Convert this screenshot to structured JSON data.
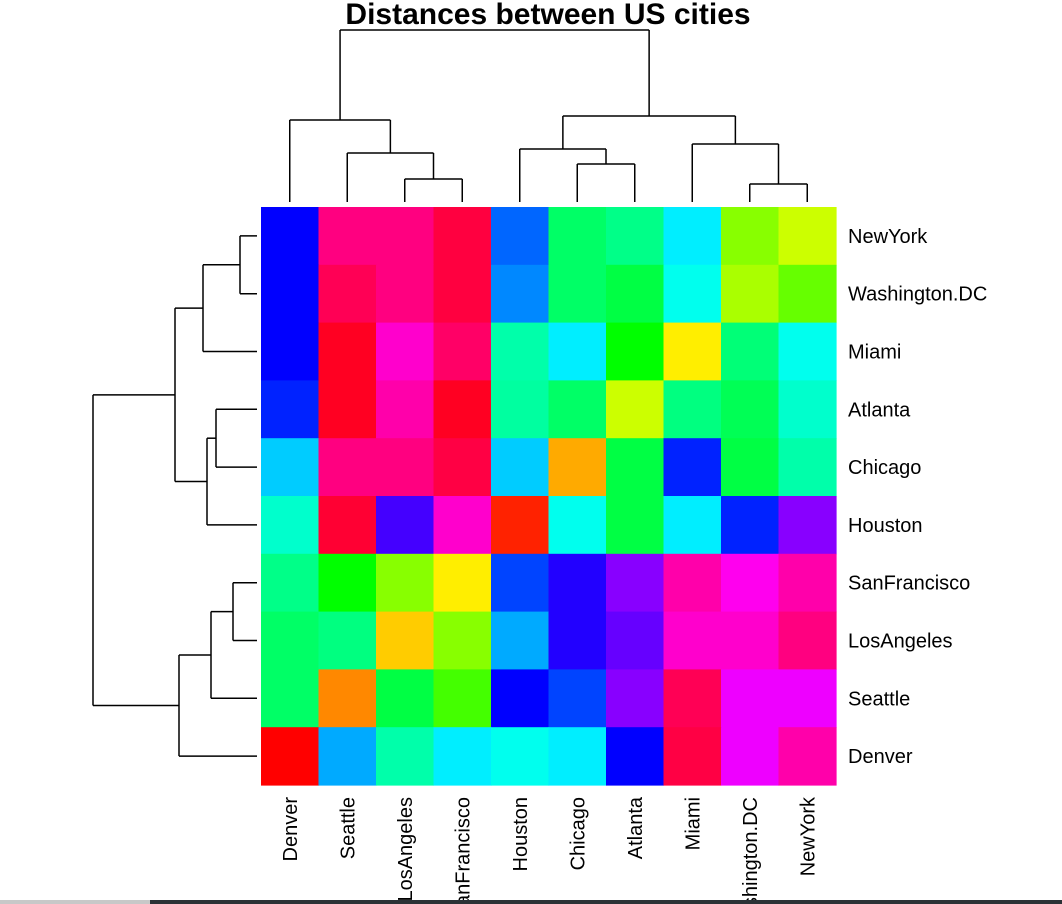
{
  "chart_data": {
    "type": "heatmap",
    "title": "Distances between US cities",
    "row_labels": [
      "NewYork",
      "Washington.DC",
      "Miami",
      "Atlanta",
      "Chicago",
      "Houston",
      "SanFrancisco",
      "LosAngeles",
      "Seattle",
      "Denver"
    ],
    "col_labels": [
      "Denver",
      "Seattle",
      "LosAngeles",
      "SanFrancisco",
      "Houston",
      "Chicago",
      "Atlanta",
      "Miami",
      "Washington.DC",
      "NewYork"
    ],
    "colormap": "rainbow",
    "dendrograms": [
      "top",
      "left"
    ],
    "cell_colors": [
      [
        "#0000ff",
        "#ff0080",
        "#ff0080",
        "#ff0040",
        "#0066ff",
        "#00ff66",
        "#00ff88",
        "#00eeff",
        "#88ff00",
        "#ccff00"
      ],
      [
        "#0000ff",
        "#ff0055",
        "#ff0080",
        "#ff0040",
        "#0088ff",
        "#00ff66",
        "#00ff44",
        "#00ffee",
        "#aaff00",
        "#66ff00"
      ],
      [
        "#0000ff",
        "#ff0022",
        "#ff00cc",
        "#ff0066",
        "#00ffaa",
        "#00eeff",
        "#00ff00",
        "#ffee00",
        "#00ff77",
        "#00ffee"
      ],
      [
        "#0022ff",
        "#ff0022",
        "#ff00aa",
        "#ff0022",
        "#00ffa0",
        "#00ff66",
        "#ccff00",
        "#00ff80",
        "#00ff55",
        "#00ffcc"
      ],
      [
        "#00ccff",
        "#ff0080",
        "#ff0080",
        "#ff0044",
        "#00ccff",
        "#ffaa00",
        "#00ff44",
        "#0022ff",
        "#00ff44",
        "#00ffaa"
      ],
      [
        "#00ffcc",
        "#ff0033",
        "#4400ff",
        "#ff00cc",
        "#ff2200",
        "#00ffee",
        "#00ff44",
        "#00eeff",
        "#0022ff",
        "#8800ff"
      ],
      [
        "#00ff88",
        "#00ff00",
        "#88ff00",
        "#ffee00",
        "#0044ff",
        "#2200ff",
        "#8800ff",
        "#ff00aa",
        "#ff00ee",
        "#ff00aa"
      ],
      [
        "#00ff66",
        "#00ff80",
        "#ffcc00",
        "#88ff00",
        "#00aaff",
        "#2200ff",
        "#6600ff",
        "#ff00cc",
        "#ff00cc",
        "#ff0080"
      ],
      [
        "#00ff66",
        "#ff8800",
        "#00ff44",
        "#44ff00",
        "#0000ff",
        "#0044ff",
        "#8800ff",
        "#ff0055",
        "#ee00ff",
        "#ee00ff"
      ],
      [
        "#ff0000",
        "#00aaff",
        "#00ffaa",
        "#00eeff",
        "#00ffee",
        "#00eeff",
        "#0000ff",
        "#ff0044",
        "#ee00ff",
        "#ff00aa"
      ]
    ]
  }
}
